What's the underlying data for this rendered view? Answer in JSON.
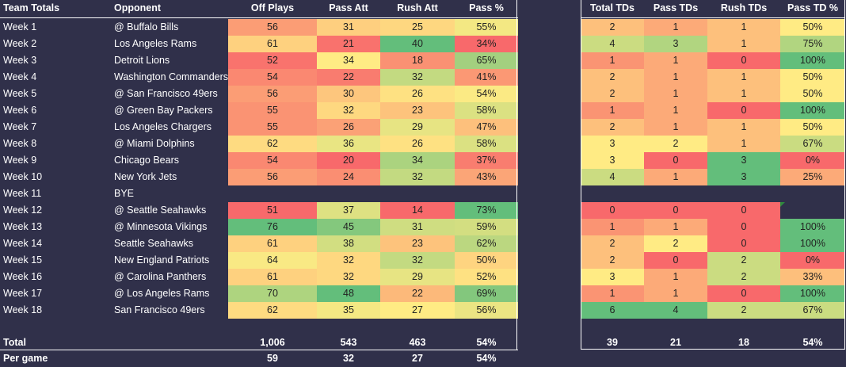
{
  "colors": {
    "background": "#30304a",
    "low": "#f8696b",
    "mid": "#ffeb84",
    "high": "#63be7b"
  },
  "left": {
    "headers": [
      "Team Totals",
      "Opponent",
      "Off Plays",
      "Pass Att",
      "Rush Att",
      "Pass %"
    ],
    "weeks": [
      {
        "week": "Week 1",
        "opponent": "@ Buffalo Bills",
        "off_plays": "56",
        "pass_att": "31",
        "rush_att": "25",
        "pass_pct": "55%"
      },
      {
        "week": "Week 2",
        "opponent": "Los Angeles Rams",
        "off_plays": "61",
        "pass_att": "21",
        "rush_att": "40",
        "pass_pct": "34%"
      },
      {
        "week": "Week 3",
        "opponent": "Detroit Lions",
        "off_plays": "52",
        "pass_att": "34",
        "rush_att": "18",
        "pass_pct": "65%"
      },
      {
        "week": "Week 4",
        "opponent": "Washington Commanders",
        "off_plays": "54",
        "pass_att": "22",
        "rush_att": "32",
        "pass_pct": "41%"
      },
      {
        "week": "Week 5",
        "opponent": "@ San Francisco 49ers",
        "off_plays": "56",
        "pass_att": "30",
        "rush_att": "26",
        "pass_pct": "54%"
      },
      {
        "week": "Week 6",
        "opponent": "@ Green Bay Packers",
        "off_plays": "55",
        "pass_att": "32",
        "rush_att": "23",
        "pass_pct": "58%"
      },
      {
        "week": "Week 7",
        "opponent": "Los Angeles Chargers",
        "off_plays": "55",
        "pass_att": "26",
        "rush_att": "29",
        "pass_pct": "47%"
      },
      {
        "week": "Week 8",
        "opponent": "@ Miami Dolphins",
        "off_plays": "62",
        "pass_att": "36",
        "rush_att": "26",
        "pass_pct": "58%"
      },
      {
        "week": "Week 9",
        "opponent": "Chicago Bears",
        "off_plays": "54",
        "pass_att": "20",
        "rush_att": "34",
        "pass_pct": "37%"
      },
      {
        "week": "Week 10",
        "opponent": "New York Jets",
        "off_plays": "56",
        "pass_att": "24",
        "rush_att": "32",
        "pass_pct": "43%"
      },
      {
        "week": "Week 11",
        "opponent": "BYE",
        "off_plays": "",
        "pass_att": "",
        "rush_att": "",
        "pass_pct": ""
      },
      {
        "week": "Week 12",
        "opponent": "@ Seattle Seahawks",
        "off_plays": "51",
        "pass_att": "37",
        "rush_att": "14",
        "pass_pct": "73%"
      },
      {
        "week": "Week 13",
        "opponent": "@ Minnesota Vikings",
        "off_plays": "76",
        "pass_att": "45",
        "rush_att": "31",
        "pass_pct": "59%"
      },
      {
        "week": "Week 14",
        "opponent": "Seattle Seahawks",
        "off_plays": "61",
        "pass_att": "38",
        "rush_att": "23",
        "pass_pct": "62%"
      },
      {
        "week": "Week 15",
        "opponent": "New England Patriots",
        "off_plays": "64",
        "pass_att": "32",
        "rush_att": "32",
        "pass_pct": "50%"
      },
      {
        "week": "Week 16",
        "opponent": "@ Carolina Panthers",
        "off_plays": "61",
        "pass_att": "32",
        "rush_att": "29",
        "pass_pct": "52%"
      },
      {
        "week": "Week 17",
        "opponent": "@ Los Angeles Rams",
        "off_plays": "70",
        "pass_att": "48",
        "rush_att": "22",
        "pass_pct": "69%"
      },
      {
        "week": "Week 18",
        "opponent": "San Francisco 49ers",
        "off_plays": "62",
        "pass_att": "35",
        "rush_att": "27",
        "pass_pct": "56%"
      }
    ],
    "total": {
      "label": "Total",
      "off_plays": "1,006",
      "pass_att": "543",
      "rush_att": "463",
      "pass_pct": "54%"
    },
    "per_game": {
      "label": "Per game",
      "off_plays": "59",
      "pass_att": "32",
      "rush_att": "27",
      "pass_pct": "54%"
    }
  },
  "right": {
    "headers": [
      "Total TDs",
      "Pass TDs",
      "Rush TDs",
      "Pass TD %"
    ],
    "weeks": [
      {
        "total_tds": "2",
        "pass_tds": "1",
        "rush_tds": "1",
        "pass_td_pct": "50%"
      },
      {
        "total_tds": "4",
        "pass_tds": "3",
        "rush_tds": "1",
        "pass_td_pct": "75%"
      },
      {
        "total_tds": "1",
        "pass_tds": "1",
        "rush_tds": "0",
        "pass_td_pct": "100%"
      },
      {
        "total_tds": "2",
        "pass_tds": "1",
        "rush_tds": "1",
        "pass_td_pct": "50%"
      },
      {
        "total_tds": "2",
        "pass_tds": "1",
        "rush_tds": "1",
        "pass_td_pct": "50%"
      },
      {
        "total_tds": "1",
        "pass_tds": "1",
        "rush_tds": "0",
        "pass_td_pct": "100%"
      },
      {
        "total_tds": "2",
        "pass_tds": "1",
        "rush_tds": "1",
        "pass_td_pct": "50%"
      },
      {
        "total_tds": "3",
        "pass_tds": "2",
        "rush_tds": "1",
        "pass_td_pct": "67%"
      },
      {
        "total_tds": "3",
        "pass_tds": "0",
        "rush_tds": "3",
        "pass_td_pct": "0%"
      },
      {
        "total_tds": "4",
        "pass_tds": "1",
        "rush_tds": "3",
        "pass_td_pct": "25%"
      },
      {
        "total_tds": "",
        "pass_tds": "",
        "rush_tds": "",
        "pass_td_pct": ""
      },
      {
        "total_tds": "0",
        "pass_tds": "0",
        "rush_tds": "0",
        "pass_td_pct": ""
      },
      {
        "total_tds": "1",
        "pass_tds": "1",
        "rush_tds": "0",
        "pass_td_pct": "100%"
      },
      {
        "total_tds": "2",
        "pass_tds": "2",
        "rush_tds": "0",
        "pass_td_pct": "100%"
      },
      {
        "total_tds": "2",
        "pass_tds": "0",
        "rush_tds": "2",
        "pass_td_pct": "0%"
      },
      {
        "total_tds": "3",
        "pass_tds": "1",
        "rush_tds": "2",
        "pass_td_pct": "33%"
      },
      {
        "total_tds": "1",
        "pass_tds": "1",
        "rush_tds": "0",
        "pass_td_pct": "100%"
      },
      {
        "total_tds": "6",
        "pass_tds": "4",
        "rush_tds": "2",
        "pass_td_pct": "67%"
      }
    ],
    "total": {
      "total_tds": "39",
      "pass_tds": "21",
      "rush_tds": "18",
      "pass_td_pct": "54%"
    }
  }
}
